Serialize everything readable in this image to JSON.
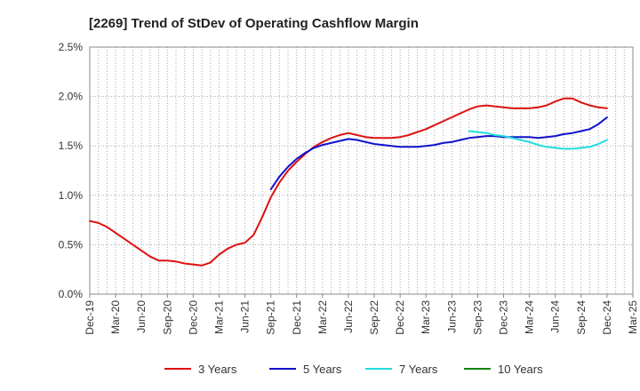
{
  "chart_data": {
    "type": "line",
    "title": "[2269]  Trend of StDev of Operating Cashflow Margin",
    "xlabel": "",
    "ylabel": "",
    "x_tick_labels": [
      "Dec-19",
      "Mar-20",
      "Jun-20",
      "Sep-20",
      "Dec-20",
      "Mar-21",
      "Jun-21",
      "Sep-21",
      "Dec-21",
      "Mar-22",
      "Jun-22",
      "Sep-22",
      "Dec-22",
      "Mar-23",
      "Jun-23",
      "Sep-23",
      "Dec-23",
      "Mar-24",
      "Jun-24",
      "Sep-24",
      "Dec-24",
      "Mar-25"
    ],
    "y_tick_labels": [
      "0.0%",
      "0.5%",
      "1.0%",
      "1.5%",
      "2.0%",
      "2.5%"
    ],
    "ylim": [
      0,
      2.5
    ],
    "y_unit": "%",
    "grid": "dotted",
    "legend_position": "bottom",
    "series": [
      {
        "name": "3 Years",
        "color": "#dd1111",
        "values": [
          [
            "2019-12",
            0.74
          ],
          [
            "2020-01",
            0.72
          ],
          [
            "2020-02",
            0.68
          ],
          [
            "2020-03",
            0.62
          ],
          [
            "2020-04",
            0.56
          ],
          [
            "2020-05",
            0.5
          ],
          [
            "2020-06",
            0.44
          ],
          [
            "2020-07",
            0.38
          ],
          [
            "2020-08",
            0.34
          ],
          [
            "2020-09",
            0.34
          ],
          [
            "2020-10",
            0.33
          ],
          [
            "2020-11",
            0.31
          ],
          [
            "2020-12",
            0.3
          ],
          [
            "2021-01",
            0.29
          ],
          [
            "2021-02",
            0.32
          ],
          [
            "2021-03",
            0.4
          ],
          [
            "2021-04",
            0.46
          ],
          [
            "2021-05",
            0.5
          ],
          [
            "2021-06",
            0.52
          ],
          [
            "2021-07",
            0.6
          ],
          [
            "2021-08",
            0.78
          ],
          [
            "2021-09",
            0.98
          ],
          [
            "2021-10",
            1.13
          ],
          [
            "2021-11",
            1.25
          ],
          [
            "2021-12",
            1.34
          ],
          [
            "2022-01",
            1.42
          ],
          [
            "2022-02",
            1.49
          ],
          [
            "2022-03",
            1.54
          ],
          [
            "2022-04",
            1.58
          ],
          [
            "2022-05",
            1.61
          ],
          [
            "2022-06",
            1.63
          ],
          [
            "2022-07",
            1.61
          ],
          [
            "2022-08",
            1.59
          ],
          [
            "2022-09",
            1.58
          ],
          [
            "2022-10",
            1.58
          ],
          [
            "2022-11",
            1.58
          ],
          [
            "2022-12",
            1.59
          ],
          [
            "2023-01",
            1.61
          ],
          [
            "2023-02",
            1.64
          ],
          [
            "2023-03",
            1.67
          ],
          [
            "2023-04",
            1.71
          ],
          [
            "2023-05",
            1.75
          ],
          [
            "2023-06",
            1.79
          ],
          [
            "2023-07",
            1.83
          ],
          [
            "2023-08",
            1.87
          ],
          [
            "2023-09",
            1.9
          ],
          [
            "2023-10",
            1.91
          ],
          [
            "2023-11",
            1.9
          ],
          [
            "2023-12",
            1.89
          ],
          [
            "2024-01",
            1.88
          ],
          [
            "2024-02",
            1.88
          ],
          [
            "2024-03",
            1.88
          ],
          [
            "2024-04",
            1.89
          ],
          [
            "2024-05",
            1.91
          ],
          [
            "2024-06",
            1.95
          ],
          [
            "2024-07",
            1.98
          ],
          [
            "2024-08",
            1.98
          ],
          [
            "2024-09",
            1.94
          ],
          [
            "2024-10",
            1.91
          ],
          [
            "2024-11",
            1.89
          ],
          [
            "2024-12",
            1.88
          ]
        ]
      },
      {
        "name": "5 Years",
        "color": "#1111cc",
        "values": [
          [
            "2021-09",
            1.06
          ],
          [
            "2021-10",
            1.19
          ],
          [
            "2021-11",
            1.29
          ],
          [
            "2021-12",
            1.37
          ],
          [
            "2022-01",
            1.43
          ],
          [
            "2022-02",
            1.48
          ],
          [
            "2022-03",
            1.51
          ],
          [
            "2022-04",
            1.53
          ],
          [
            "2022-05",
            1.55
          ],
          [
            "2022-06",
            1.57
          ],
          [
            "2022-07",
            1.56
          ],
          [
            "2022-08",
            1.54
          ],
          [
            "2022-09",
            1.52
          ],
          [
            "2022-10",
            1.51
          ],
          [
            "2022-11",
            1.5
          ],
          [
            "2022-12",
            1.49
          ],
          [
            "2023-01",
            1.49
          ],
          [
            "2023-02",
            1.49
          ],
          [
            "2023-03",
            1.5
          ],
          [
            "2023-04",
            1.51
          ],
          [
            "2023-05",
            1.53
          ],
          [
            "2023-06",
            1.54
          ],
          [
            "2023-07",
            1.56
          ],
          [
            "2023-08",
            1.58
          ],
          [
            "2023-09",
            1.59
          ],
          [
            "2023-10",
            1.6
          ],
          [
            "2023-11",
            1.6
          ],
          [
            "2023-12",
            1.59
          ],
          [
            "2024-01",
            1.59
          ],
          [
            "2024-02",
            1.59
          ],
          [
            "2024-03",
            1.59
          ],
          [
            "2024-04",
            1.58
          ],
          [
            "2024-05",
            1.59
          ],
          [
            "2024-06",
            1.6
          ],
          [
            "2024-07",
            1.62
          ],
          [
            "2024-08",
            1.63
          ],
          [
            "2024-09",
            1.65
          ],
          [
            "2024-10",
            1.67
          ],
          [
            "2024-11",
            1.72
          ],
          [
            "2024-12",
            1.79
          ]
        ]
      },
      {
        "name": "7 Years",
        "color": "#22dddd",
        "values": [
          [
            "2023-08",
            1.65
          ],
          [
            "2023-09",
            1.64
          ],
          [
            "2023-10",
            1.63
          ],
          [
            "2023-11",
            1.61
          ],
          [
            "2023-12",
            1.6
          ],
          [
            "2024-01",
            1.58
          ],
          [
            "2024-02",
            1.56
          ],
          [
            "2024-03",
            1.54
          ],
          [
            "2024-04",
            1.51
          ],
          [
            "2024-05",
            1.49
          ],
          [
            "2024-06",
            1.48
          ],
          [
            "2024-07",
            1.47
          ],
          [
            "2024-08",
            1.47
          ],
          [
            "2024-09",
            1.48
          ],
          [
            "2024-10",
            1.49
          ],
          [
            "2024-11",
            1.52
          ],
          [
            "2024-12",
            1.56
          ]
        ]
      },
      {
        "name": "10 Years",
        "color": "#118811",
        "values": []
      }
    ]
  }
}
